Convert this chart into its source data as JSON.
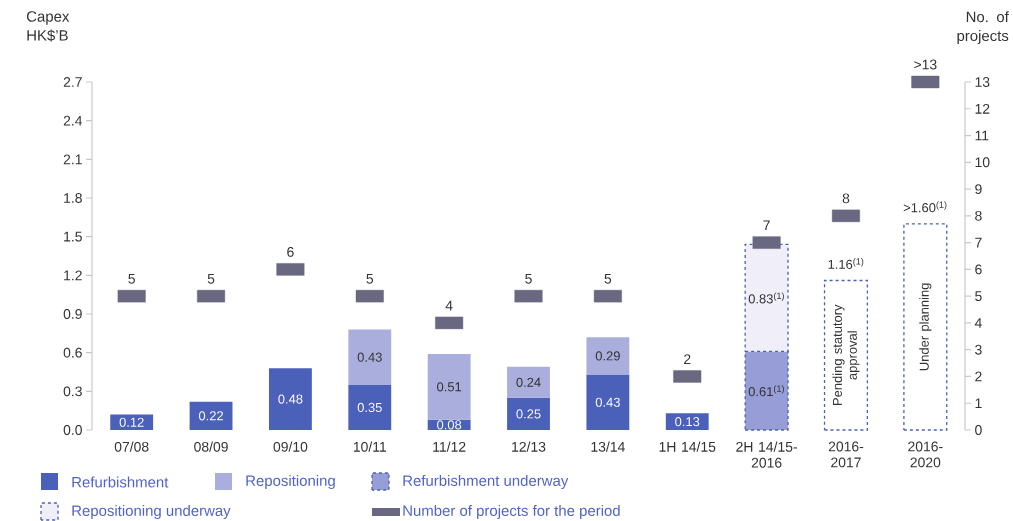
{
  "chart_data": {
    "type": "bar",
    "stacked": true,
    "ylabel": "Capex HK$’B",
    "y2label": "No. of projects",
    "categories": [
      "07/08",
      "08/09",
      "09/10",
      "10/11",
      "11/12",
      "12/13",
      "13/14",
      "1H 14/15",
      "2H 14/15-2016",
      "2016-2017",
      "2016-2020"
    ],
    "ylim": [
      0,
      2.7
    ],
    "yticks": [
      {
        "value": 0,
        "label": "0.0"
      },
      0.3,
      0.6,
      0.9,
      1.2,
      1.5,
      1.8,
      2.1,
      2.4,
      2.7
    ],
    "y2lim": [
      0,
      13
    ],
    "y2ticks": [
      0,
      1,
      2,
      3,
      4,
      5,
      6,
      7,
      8,
      9,
      10,
      11,
      12,
      13
    ],
    "legend": "bottom",
    "series": [
      {
        "name": "Refurbishment",
        "color": "#4b60b8",
        "values": [
          0.12,
          0.22,
          0.48,
          0.35,
          0.08,
          0.25,
          0.43,
          0.13,
          null,
          null,
          null
        ],
        "value_labels": [
          "0.12",
          "0.22",
          "0.48",
          "0.35",
          "0.08",
          "0.25",
          "0.43",
          "0.13",
          null,
          null,
          null
        ]
      },
      {
        "name": "Repositioning",
        "color": "#aaaedc",
        "values": [
          null,
          null,
          null,
          0.43,
          0.51,
          0.24,
          0.29,
          null,
          null,
          null,
          null
        ],
        "value_labels": [
          null,
          null,
          null,
          "0.43",
          "0.51",
          "0.24",
          "0.29",
          null,
          null,
          null,
          null
        ]
      },
      {
        "name": "Refurbishment underway",
        "color": "#979dd6",
        "line_style": "dashed",
        "values": [
          null,
          null,
          null,
          null,
          null,
          null,
          null,
          null,
          0.61,
          null,
          null
        ],
        "value_labels": [
          null,
          null,
          null,
          null,
          null,
          null,
          null,
          null,
          "0.61$^{(1)}$",
          null,
          null
        ]
      },
      {
        "name": "Repositioning underway",
        "color": "#efeef9",
        "line_style": "dashed",
        "values": [
          null,
          null,
          null,
          null,
          null,
          null,
          null,
          null,
          0.83,
          1.16,
          1.6
        ],
        "colors": [
          null,
          null,
          null,
          null,
          null,
          null,
          null,
          null,
          "#efeef9",
          "#ffffff",
          "#ffffff"
        ],
        "value_labels": [
          null,
          null,
          null,
          null,
          null,
          null,
          null,
          null,
          "0.83$^{(1)}$",
          "1.16$^{(1)}$",
          ">1.60$^{(1)}$"
        ]
      },
      {
        "name": "Number of projects for the period",
        "type": "scatter",
        "axis": "y2",
        "marker": "square",
        "color": "#696880",
        "values": [
          5,
          5,
          6,
          5,
          4,
          5,
          5,
          2,
          7,
          8,
          13
        ],
        "value_labels": [
          "5",
          "5",
          "6",
          "5",
          "4",
          "5",
          "5",
          "2",
          "7",
          "8",
          ">13"
        ]
      }
    ],
    "annotations": [
      "Pending statutory approval",
      "Under planning"
    ]
  }
}
